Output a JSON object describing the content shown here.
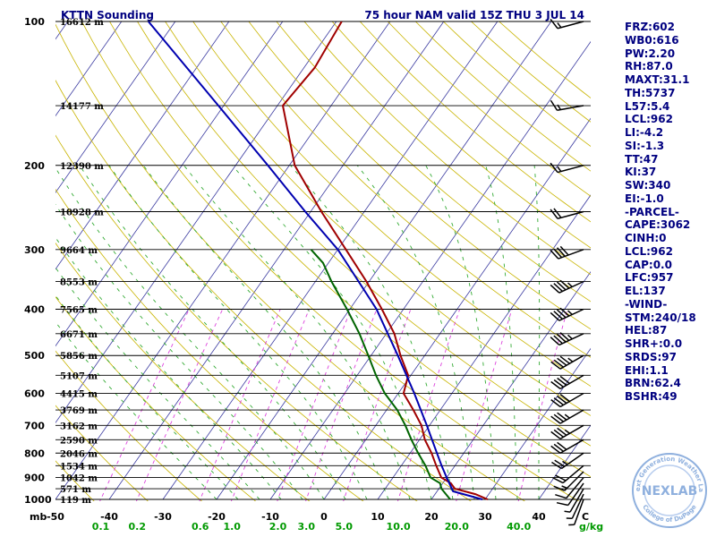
{
  "header": {
    "station_title": "KTTN Sounding",
    "run_info": "75 hour NAM valid 15Z THU  3 JUL 14"
  },
  "indices": [
    "FRZ:602",
    "WB0:616",
    "PW:2.20",
    "RH:87.0",
    "MAXT:31.1",
    "TH:5737",
    "L57:5.4",
    "LCL:962",
    "LI:-4.2",
    "SI:-1.3",
    "TT:47",
    "KI:37",
    "SW:340",
    "EI:-1.0",
    "-PARCEL-",
    "CAPE:3062",
    "CINH:0",
    "LCL:962",
    "CAP:0.0",
    "LFC:957",
    "EL:137",
    "-WIND-",
    "STM:240/18",
    "HEL:87",
    "SHR+:0.0",
    "SRDS:97",
    "EHI:1.1",
    "BRN:62.4",
    "BSHR:49"
  ],
  "logo": {
    "text": "NEXLAB",
    "ring_top": "Next Generation Weather Lab",
    "ring_bottom": "College of DuPage"
  },
  "colors": {
    "temperature": "#a00000",
    "dewpoint": "#006400",
    "parcel": "#0000b0",
    "isotherm": "#3a3aa0",
    "dry_adiabat": "#c8b400",
    "moist_adiabat": "#33aa33",
    "mixing_ratio": "#dd44dd",
    "isobar": "#000000",
    "text": "#000080"
  },
  "chart_data": {
    "type": "line",
    "title": "KTTN Sounding",
    "subtitle": "75 hour NAM valid 15Z THU  3 JUL 14",
    "pressure_unit": "mb",
    "temp_unit": "C",
    "mixing_ratio_unit": "g/kg",
    "y_scale": "log-pressure",
    "ylim": [
      1000,
      100
    ],
    "xlim": [
      -50,
      50
    ],
    "pressure_ticks": [
      100,
      200,
      300,
      400,
      500,
      600,
      700,
      800,
      900,
      1000
    ],
    "temp_ticks": [
      -50,
      -40,
      -30,
      -20,
      -10,
      0,
      10,
      20,
      30,
      40
    ],
    "mixing_ratio_ticks": [
      {
        "label": "0.1",
        "value": 0.1
      },
      {
        "label": "0.2",
        "value": 0.2
      },
      {
        "label": "0.6",
        "value": 0.6
      },
      {
        "label": "1.0",
        "value": 1.0
      },
      {
        "label": "2.0",
        "value": 2.0
      },
      {
        "label": "3.0",
        "value": 3.0
      },
      {
        "label": "5.0",
        "value": 5.0
      },
      {
        "label": "10.0",
        "value": 10.0
      },
      {
        "label": "20.0",
        "value": 20.0
      },
      {
        "label": "40.0",
        "value": 40.0
      }
    ],
    "heights": [
      {
        "p": 100,
        "label": "16612 m"
      },
      {
        "p": 150,
        "label": "14177 m"
      },
      {
        "p": 200,
        "label": "12390 m"
      },
      {
        "p": 250,
        "label": "10928 m"
      },
      {
        "p": 300,
        "label": "9664 m"
      },
      {
        "p": 350,
        "label": "8553 m"
      },
      {
        "p": 400,
        "label": "7565 m"
      },
      {
        "p": 450,
        "label": "6671 m"
      },
      {
        "p": 500,
        "label": "5856 m"
      },
      {
        "p": 550,
        "label": "5107 m"
      },
      {
        "p": 600,
        "label": "4415 m"
      },
      {
        "p": 650,
        "label": "3769 m"
      },
      {
        "p": 700,
        "label": "3162 m"
      },
      {
        "p": 750,
        "label": "2590 m"
      },
      {
        "p": 800,
        "label": "2046 m"
      },
      {
        "p": 850,
        "label": "1534 m"
      },
      {
        "p": 900,
        "label": "1042 m"
      },
      {
        "p": 950,
        "label": "571 m"
      },
      {
        "p": 1000,
        "label": "119 m"
      }
    ],
    "series": [
      {
        "key": "temperature",
        "values": [
          {
            "p": 1000,
            "t": 30.5
          },
          {
            "p": 975,
            "t": 27.5
          },
          {
            "p": 950,
            "t": 23.0
          },
          {
            "p": 925,
            "t": 21.5
          },
          {
            "p": 900,
            "t": 19.0
          },
          {
            "p": 850,
            "t": 16.5
          },
          {
            "p": 800,
            "t": 14.0
          },
          {
            "p": 750,
            "t": 11.0
          },
          {
            "p": 700,
            "t": 8.5
          },
          {
            "p": 650,
            "t": 5.0
          },
          {
            "p": 600,
            "t": 1.0
          },
          {
            "p": 550,
            "t": -0.5
          },
          {
            "p": 500,
            "t": -4.5
          },
          {
            "p": 450,
            "t": -8.5
          },
          {
            "p": 400,
            "t": -14.0
          },
          {
            "p": 350,
            "t": -20.5
          },
          {
            "p": 300,
            "t": -28.5
          },
          {
            "p": 250,
            "t": -38.0
          },
          {
            "p": 200,
            "t": -49.0
          },
          {
            "p": 150,
            "t": -59.0
          },
          {
            "p": 125,
            "t": -58.0
          },
          {
            "p": 100,
            "t": -59.0
          }
        ]
      },
      {
        "key": "dewpoint",
        "values": [
          {
            "p": 1000,
            "t": 23.5
          },
          {
            "p": 950,
            "t": 20.5
          },
          {
            "p": 925,
            "t": 19.5
          },
          {
            "p": 900,
            "t": 17.0
          },
          {
            "p": 850,
            "t": 14.5
          },
          {
            "p": 800,
            "t": 11.5
          },
          {
            "p": 750,
            "t": 8.5
          },
          {
            "p": 700,
            "t": 5.5
          },
          {
            "p": 650,
            "t": 2.0
          },
          {
            "p": 600,
            "t": -2.5
          },
          {
            "p": 550,
            "t": -6.5
          },
          {
            "p": 500,
            "t": -10.5
          },
          {
            "p": 450,
            "t": -15.0
          },
          {
            "p": 400,
            "t": -20.5
          },
          {
            "p": 350,
            "t": -27.0
          },
          {
            "p": 320,
            "t": -31.0
          },
          {
            "p": 300,
            "t": -35.0
          }
        ]
      },
      {
        "key": "parcel",
        "values": [
          {
            "p": 1000,
            "t": 29.5
          },
          {
            "p": 962,
            "t": 23.0
          },
          {
            "p": 900,
            "t": 20.0
          },
          {
            "p": 850,
            "t": 17.5
          },
          {
            "p": 800,
            "t": 15.0
          },
          {
            "p": 700,
            "t": 9.5
          },
          {
            "p": 600,
            "t": 3.0
          },
          {
            "p": 500,
            "t": -5.0
          },
          {
            "p": 400,
            "t": -15.0
          },
          {
            "p": 300,
            "t": -30.0
          },
          {
            "p": 250,
            "t": -41.0
          },
          {
            "p": 200,
            "t": -54.0
          },
          {
            "p": 150,
            "t": -71.0
          },
          {
            "p": 100,
            "t": -95.0
          }
        ]
      }
    ],
    "winds": [
      {
        "p": 1000,
        "dir": 200,
        "spd": 5
      },
      {
        "p": 975,
        "dir": 205,
        "spd": 5
      },
      {
        "p": 950,
        "dir": 210,
        "spd": 5
      },
      {
        "p": 925,
        "dir": 215,
        "spd": 10
      },
      {
        "p": 900,
        "dir": 220,
        "spd": 10
      },
      {
        "p": 875,
        "dir": 225,
        "spd": 15
      },
      {
        "p": 850,
        "dir": 230,
        "spd": 20
      },
      {
        "p": 800,
        "dir": 235,
        "spd": 25
      },
      {
        "p": 750,
        "dir": 240,
        "spd": 30
      },
      {
        "p": 700,
        "dir": 240,
        "spd": 35
      },
      {
        "p": 650,
        "dir": 240,
        "spd": 35
      },
      {
        "p": 600,
        "dir": 240,
        "spd": 40
      },
      {
        "p": 550,
        "dir": 240,
        "spd": 40
      },
      {
        "p": 500,
        "dir": 240,
        "spd": 45
      },
      {
        "p": 450,
        "dir": 245,
        "spd": 45
      },
      {
        "p": 400,
        "dir": 245,
        "spd": 45
      },
      {
        "p": 350,
        "dir": 245,
        "spd": 45
      },
      {
        "p": 300,
        "dir": 250,
        "spd": 40
      },
      {
        "p": 250,
        "dir": 255,
        "spd": 20
      },
      {
        "p": 200,
        "dir": 255,
        "spd": 15
      },
      {
        "p": 150,
        "dir": 260,
        "spd": 15
      },
      {
        "p": 100,
        "dir": 255,
        "spd": 15
      }
    ]
  }
}
